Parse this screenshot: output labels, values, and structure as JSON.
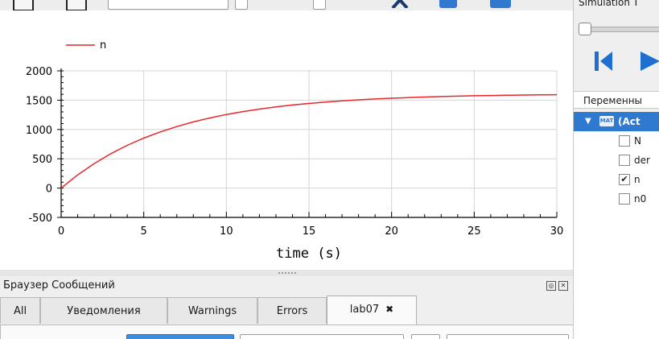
{
  "plot": {
    "legend": "n",
    "xlabel": "time (s)",
    "xticks": [
      "0",
      "5",
      "10",
      "15",
      "20",
      "25",
      "30"
    ],
    "yticks": [
      "2000",
      "1500",
      "1000",
      "500",
      "0",
      "-500"
    ],
    "line_color": "#e8262b"
  },
  "chart_data": {
    "type": "line",
    "xlabel": "time (s)",
    "ylabel": "",
    "xlim": [
      0,
      30
    ],
    "ylim": [
      -500,
      2000
    ],
    "grid": true,
    "legend_position": "top-left",
    "series": [
      {
        "name": "n",
        "color": "#e8262b",
        "x": [
          0,
          1,
          2,
          3,
          4,
          5,
          6,
          7,
          8,
          9,
          10,
          11,
          12,
          13,
          14,
          15,
          16,
          17,
          18,
          19,
          20,
          21,
          22,
          23,
          24,
          25,
          26,
          27,
          28,
          29,
          30
        ],
        "y": [
          0,
          225,
          419,
          586,
          729,
          853,
          959,
          1050,
          1129,
          1197,
          1255,
          1305,
          1348,
          1385,
          1417,
          1444,
          1468,
          1488,
          1505,
          1520,
          1533,
          1544,
          1554,
          1562,
          1569,
          1575,
          1580,
          1584,
          1588,
          1591,
          1594
        ]
      }
    ]
  },
  "messages": {
    "title": "Браузер Сообщений",
    "tabs": [
      {
        "label": "All"
      },
      {
        "label": "Уведомления"
      },
      {
        "label": "Warnings"
      },
      {
        "label": "Errors"
      },
      {
        "label": "lab07",
        "close": "✖"
      }
    ]
  },
  "right_panel": {
    "simulation_label": "Simulation T",
    "variables_header": "Переменны",
    "root": {
      "badge": "MAT",
      "label": "(Act"
    },
    "variables": [
      {
        "label": "N",
        "checked": false
      },
      {
        "label": "der",
        "checked": false
      },
      {
        "label": "n",
        "checked": true
      },
      {
        "label": "n0",
        "checked": false
      }
    ],
    "accent_color": "#2f7ad0"
  }
}
